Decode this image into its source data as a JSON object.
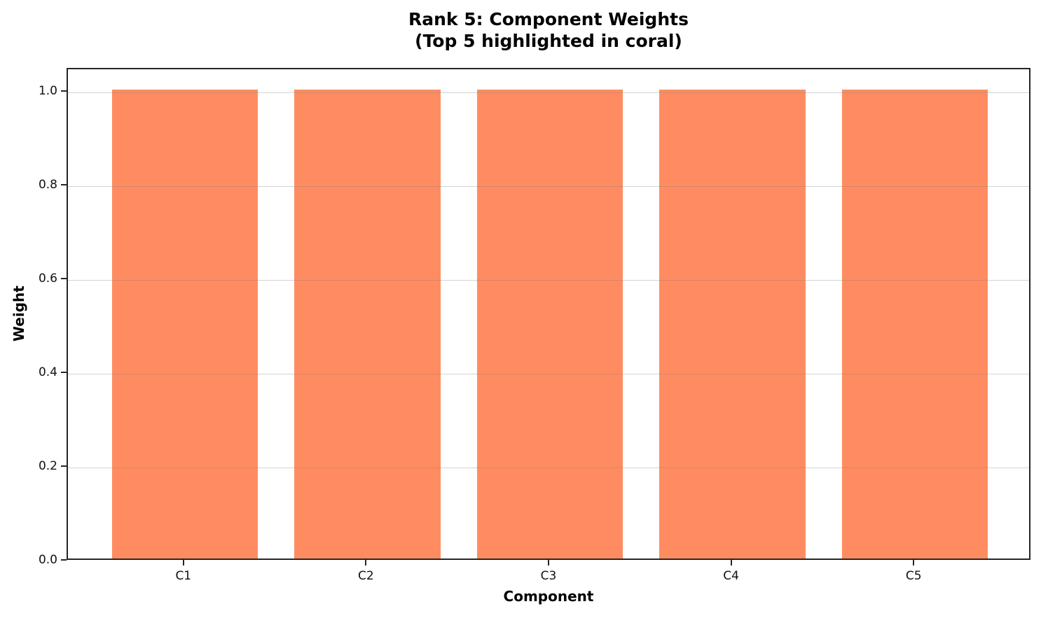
{
  "chart_data": {
    "type": "bar",
    "title": "Rank 5: Component Weights",
    "subtitle": "(Top 5 highlighted in coral)",
    "xlabel": "Component",
    "ylabel": "Weight",
    "categories": [
      "C1",
      "C2",
      "C3",
      "C4",
      "C5"
    ],
    "values": [
      1.0,
      1.0,
      1.0,
      1.0,
      1.0
    ],
    "ylim": [
      0,
      1.05
    ],
    "xlim": [
      -0.64,
      4.64
    ],
    "bar_width_data_units": 0.8,
    "yticks": [
      {
        "value": 0.0,
        "label": "0.0"
      },
      {
        "value": 0.2,
        "label": "0.2"
      },
      {
        "value": 0.4,
        "label": "0.4"
      },
      {
        "value": 0.6,
        "label": "0.6"
      },
      {
        "value": 0.8,
        "label": "0.8"
      },
      {
        "value": 1.0,
        "label": "1.0"
      }
    ],
    "bar_color": "#FF8C61",
    "grid": {
      "axis": "y",
      "on": true
    },
    "legend": "none"
  }
}
